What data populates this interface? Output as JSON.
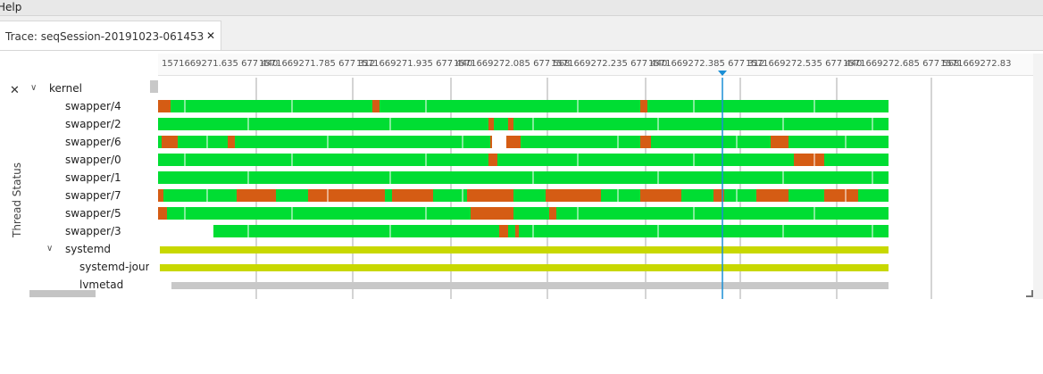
{
  "menubar": {
    "help_label": "Help"
  },
  "tab": {
    "title": "Trace: seqSession-20191023-061453",
    "close_glyph": "✕"
  },
  "view": {
    "y_axis_title": "Thread Status",
    "remove_glyph": "✕"
  },
  "ruler": {
    "ticks": [
      "1571669271.635 677 440",
      "1571669271.785 677 312",
      "1571669271.935 677 440",
      "1571669272.085 677 568",
      "1571669272.235 677 440",
      "1571669272.385 677 312",
      "1571669272.535 677 440",
      "1571669272.685 677 568",
      "1571669272.83"
    ]
  },
  "tree": [
    {
      "label": "kernel",
      "level": 0,
      "expander": "expanded"
    },
    {
      "label": "swapper/4",
      "level": 1
    },
    {
      "label": "swapper/2",
      "level": 1
    },
    {
      "label": "swapper/6",
      "level": 1
    },
    {
      "label": "swapper/0",
      "level": 1
    },
    {
      "label": "swapper/1",
      "level": 1
    },
    {
      "label": "swapper/7",
      "level": 1
    },
    {
      "label": "swapper/5",
      "level": 1
    },
    {
      "label": "swapper/3",
      "level": 1
    },
    {
      "label": "systemd",
      "level": 1,
      "expander": "expanded"
    },
    {
      "label": "systemd-journ",
      "level": 2
    },
    {
      "label": "lvmetad",
      "level": 2
    }
  ],
  "colors": {
    "running": "#00dd33",
    "waiting": "#d55c14",
    "blocked": "#c8d800",
    "inactive": "#c8c8c8",
    "cursor": "#1b8fd6",
    "gridline": "#a8a8a8"
  }
}
